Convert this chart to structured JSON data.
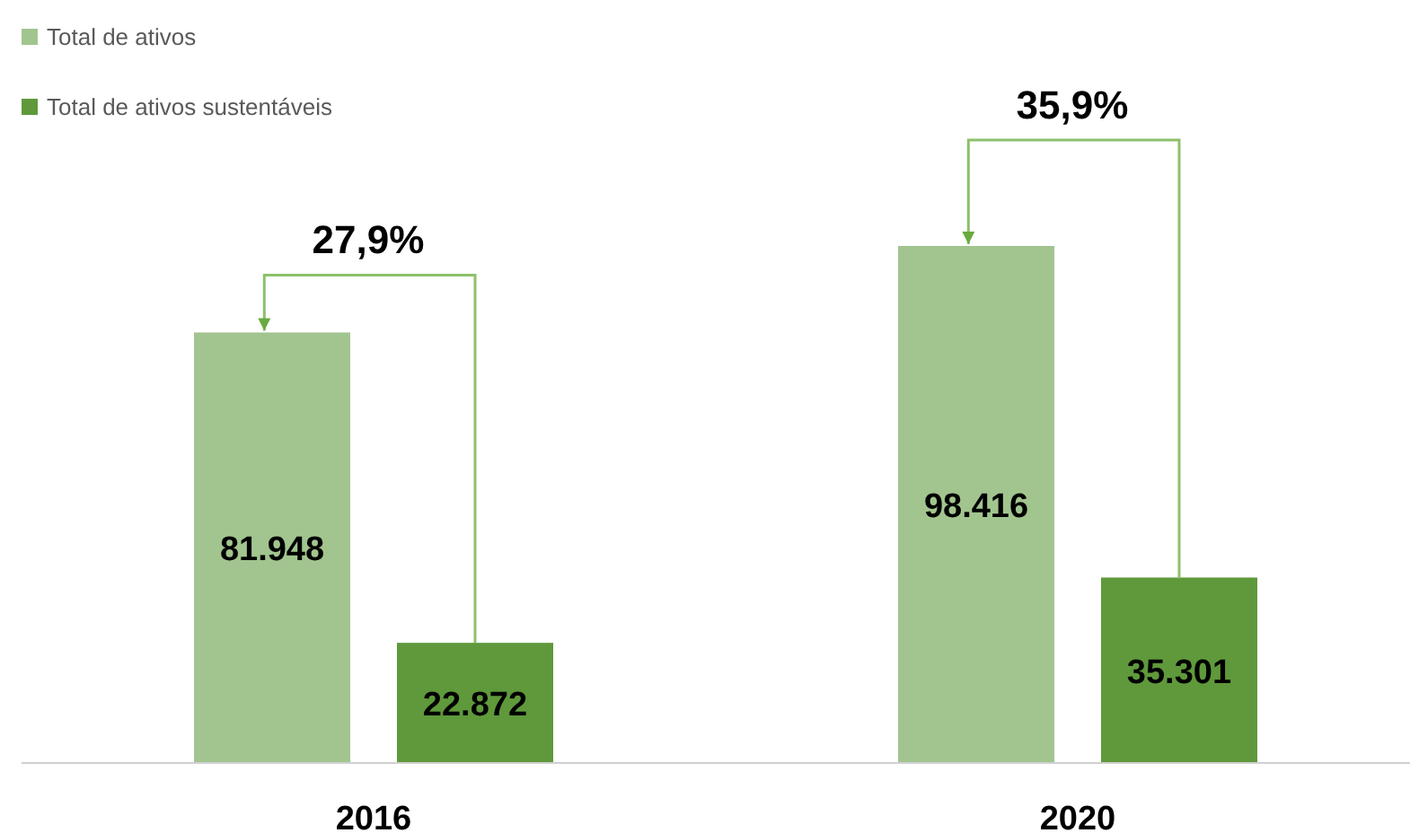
{
  "chart_data": {
    "type": "bar",
    "categories": [
      "2016",
      "2020"
    ],
    "series": [
      {
        "name": "Total de ativos",
        "color": "#a2c58f",
        "values": [
          81948,
          98416
        ],
        "value_labels": [
          "81.948",
          "98.416"
        ]
      },
      {
        "name": "Total de ativos sustentáveis",
        "color": "#5f993b",
        "values": [
          22872,
          35301
        ],
        "value_labels": [
          "22.872",
          "35.301"
        ]
      }
    ],
    "annotations": [
      "27,9%",
      "35,9%"
    ],
    "legend": "top left"
  }
}
